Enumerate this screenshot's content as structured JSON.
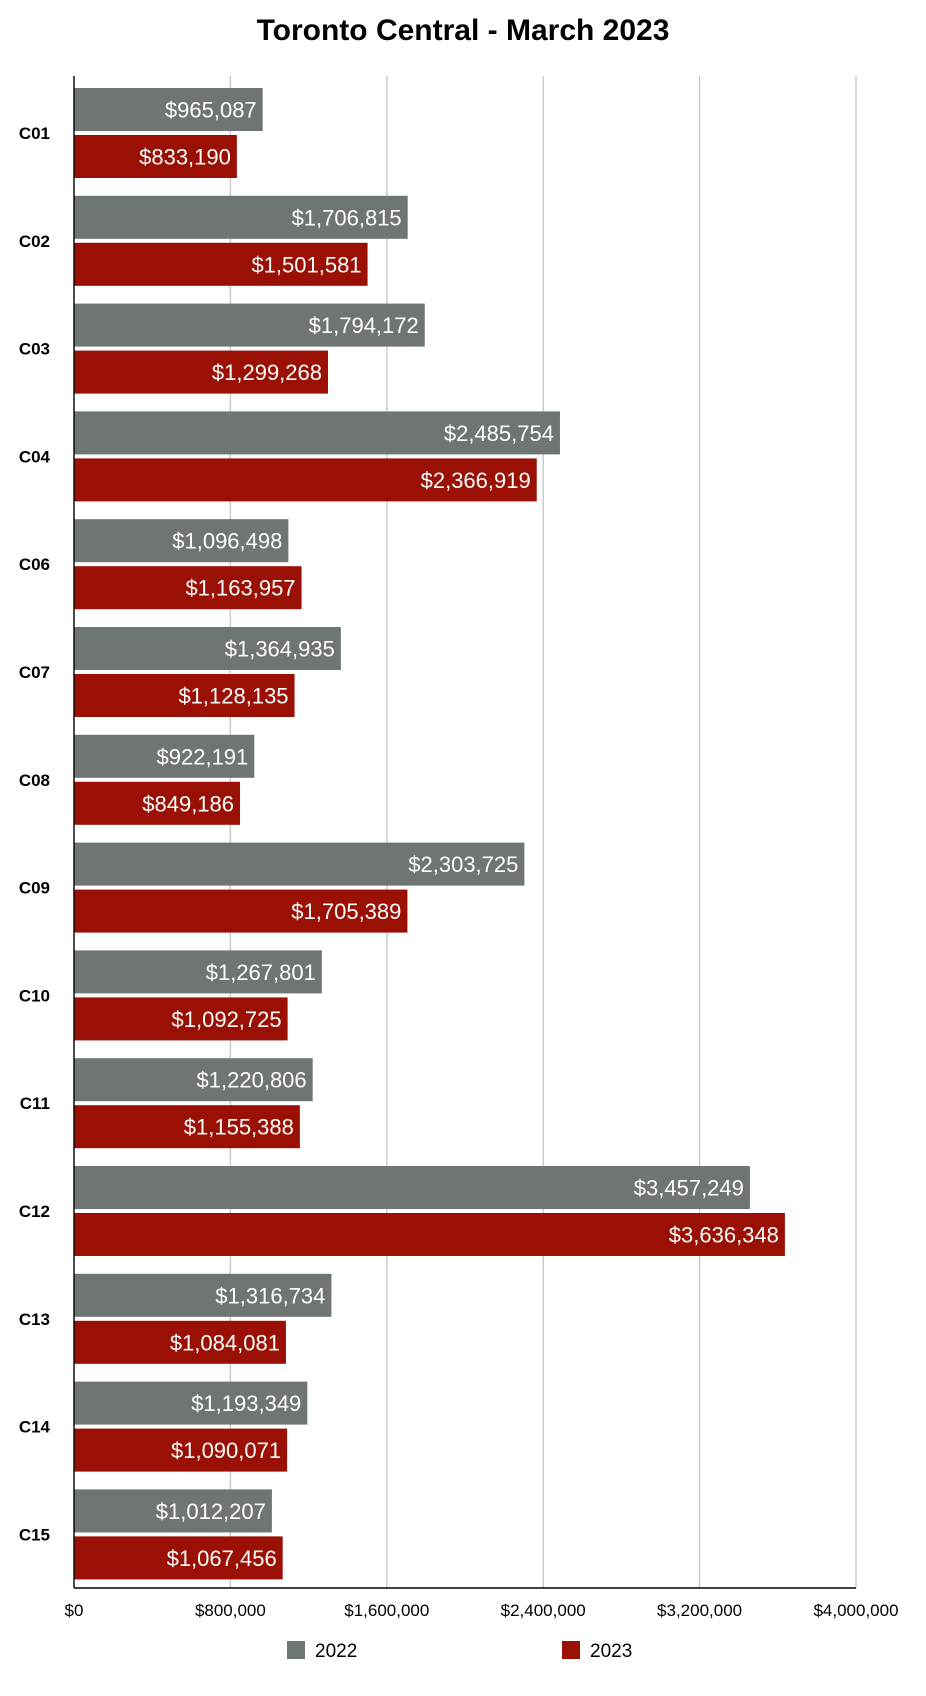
{
  "chart_data": {
    "type": "bar",
    "orientation": "horizontal",
    "title": "Toronto Central - March 2023",
    "categories": [
      "C01",
      "C02",
      "C03",
      "C04",
      "C06",
      "C07",
      "C08",
      "C09",
      "C10",
      "C11",
      "C12",
      "C13",
      "C14",
      "C15"
    ],
    "series": [
      {
        "name": "2022",
        "color": "#6e7572",
        "values": [
          965087,
          1706815,
          1794172,
          2485754,
          1096498,
          1364935,
          922191,
          2303725,
          1267801,
          1220806,
          3457249,
          1316734,
          1193349,
          1012207
        ],
        "labels": [
          "$965,087",
          "$1,706,815",
          "$1,794,172",
          "$2,485,754",
          "$1,096,498",
          "$1,364,935",
          "$922,191",
          "$2,303,725",
          "$1,267,801",
          "$1,220,806",
          "$3,457,249",
          "$1,316,734",
          "$1,193,349",
          "$1,012,207"
        ]
      },
      {
        "name": "2023",
        "color": "#9b1005",
        "values": [
          833190,
          1501581,
          1299268,
          2366919,
          1163957,
          1128135,
          849186,
          1705389,
          1092725,
          1155388,
          3636348,
          1084081,
          1090071,
          1067456
        ],
        "labels": [
          "$833,190",
          "$1,501,581",
          "$1,299,268",
          "$2,366,919",
          "$1,163,957",
          "$1,128,135",
          "$849,186",
          "$1,705,389",
          "$1,092,725",
          "$1,155,388",
          "$3,636,348",
          "$1,084,081",
          "$1,090,071",
          "$1,067,456"
        ]
      }
    ],
    "xlim": [
      0,
      4000000
    ],
    "xticks": [
      0,
      800000,
      1600000,
      2400000,
      3200000,
      4000000
    ],
    "xtick_labels": [
      "$0",
      "$800,000",
      "$1,600,000",
      "$2,400,000",
      "$3,200,000",
      "$4,000,000"
    ],
    "grid": true,
    "legend_position": "bottom",
    "gridline_color": "#c8c8c8"
  }
}
